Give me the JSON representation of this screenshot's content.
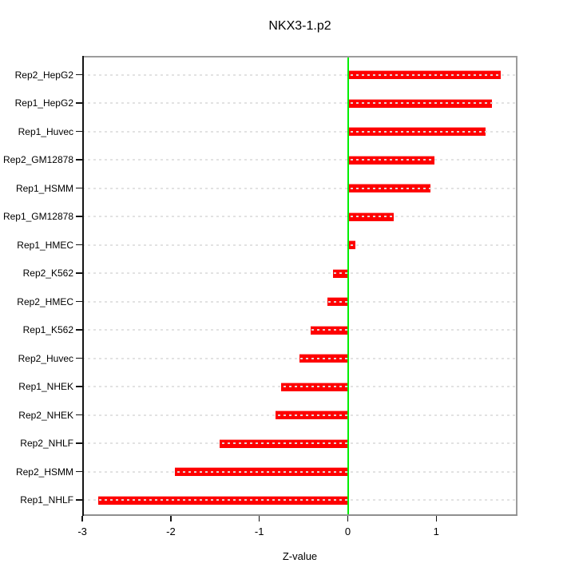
{
  "title": "NKX3-1.p2",
  "chart_data": {
    "type": "bar",
    "orientation": "horizontal",
    "title": "NKX3-1.p2",
    "xlabel": "Z-value",
    "categories": [
      "Rep2_HepG2",
      "Rep1_HepG2",
      "Rep1_Huvec",
      "Rep2_GM12878",
      "Rep1_HSMM",
      "Rep1_GM12878",
      "Rep1_HMEC",
      "Rep2_K562",
      "Rep2_HMEC",
      "Rep1_K562",
      "Rep2_Huvec",
      "Rep1_NHEK",
      "Rep2_NHEK",
      "Rep2_NHLF",
      "Rep2_HSMM",
      "Rep1_NHLF"
    ],
    "values": [
      1.73,
      1.63,
      1.56,
      0.98,
      0.93,
      0.52,
      0.09,
      -0.17,
      -0.23,
      -0.42,
      -0.55,
      -0.75,
      -0.82,
      -1.45,
      -1.95,
      -2.82
    ],
    "xticks": [
      -3,
      -2,
      -1,
      0,
      1
    ],
    "xlim": [
      -3,
      1.92
    ],
    "grid": "dotted horizontal line per category",
    "legend": "none",
    "colors": {
      "bar": "#fe0000",
      "bar_highlight": "#ff9a9a",
      "zero_line": "#00ee00",
      "grid_line": "#e1e1e1",
      "panel_border": "#9c9c9c",
      "axis": "#141414",
      "background": "#ffffff",
      "text": "#000000"
    }
  }
}
